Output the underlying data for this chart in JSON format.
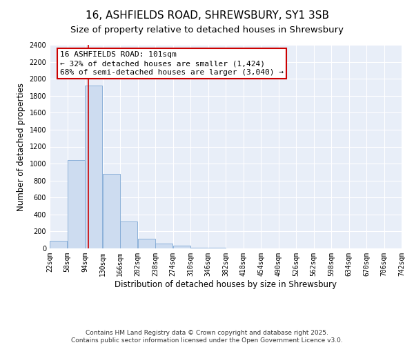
{
  "title": "16, ASHFIELDS ROAD, SHREWSBURY, SY1 3SB",
  "subtitle": "Size of property relative to detached houses in Shrewsbury",
  "xlabel": "Distribution of detached houses by size in Shrewsbury",
  "ylabel": "Number of detached properties",
  "bar_color": "#cddcf0",
  "bar_edge_color": "#7fa8d4",
  "background_color": "#e8eef8",
  "grid_color": "#ffffff",
  "bin_edges": [
    22,
    58,
    94,
    130,
    166,
    202,
    238,
    274,
    310,
    346,
    382,
    418,
    454,
    490,
    526,
    562,
    598,
    634,
    670,
    706,
    742
  ],
  "bin_labels": [
    "22sqm",
    "58sqm",
    "94sqm",
    "130sqm",
    "166sqm",
    "202sqm",
    "238sqm",
    "274sqm",
    "310sqm",
    "346sqm",
    "382sqm",
    "418sqm",
    "454sqm",
    "490sqm",
    "526sqm",
    "562sqm",
    "598sqm",
    "634sqm",
    "670sqm",
    "706sqm",
    "742sqm"
  ],
  "bar_heights": [
    90,
    1040,
    1920,
    880,
    320,
    115,
    55,
    35,
    10,
    5,
    2,
    0,
    0,
    0,
    0,
    0,
    0,
    0,
    0,
    0
  ],
  "ylim": [
    0,
    2400
  ],
  "yticks": [
    0,
    200,
    400,
    600,
    800,
    1000,
    1200,
    1400,
    1600,
    1800,
    2000,
    2200,
    2400
  ],
  "vline_x": 101,
  "vline_color": "#cc0000",
  "annotation_line1": "16 ASHFIELDS ROAD: 101sqm",
  "annotation_line2": "← 32% of detached houses are smaller (1,424)",
  "annotation_line3": "68% of semi-detached houses are larger (3,040) →",
  "annotation_box_color": "#cc0000",
  "annotation_box_fill": "#ffffff",
  "footer_line1": "Contains HM Land Registry data © Crown copyright and database right 2025.",
  "footer_line2": "Contains public sector information licensed under the Open Government Licence v3.0.",
  "title_fontsize": 11,
  "subtitle_fontsize": 9.5,
  "axis_label_fontsize": 8.5,
  "tick_fontsize": 7,
  "annotation_fontsize": 8,
  "footer_fontsize": 6.5
}
